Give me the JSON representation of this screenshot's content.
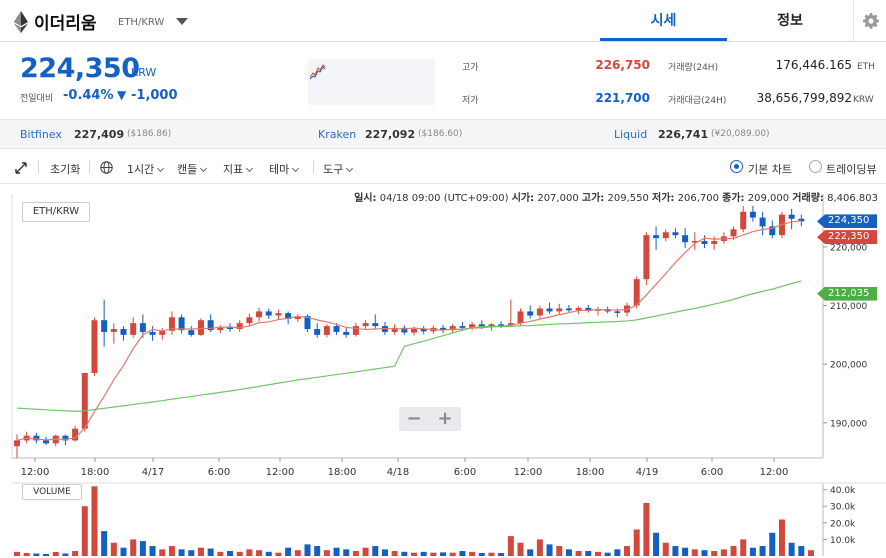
{
  "header": {
    "coin_name": "이더리움",
    "coin_symbol": "ETH/KRW",
    "tabs": [
      "시세",
      "정보"
    ]
  },
  "summary": {
    "price": "224,350",
    "unit": "KRW",
    "change_label": "전일대비",
    "change_rate": "-0.44%",
    "change_arrow": "▼",
    "change_amount": "-1,000",
    "high_label": "고가",
    "high": "226,750",
    "low_label": "저가",
    "low": "221,700",
    "volume_label": "거래량(24H)",
    "volume": "176,446.165",
    "volume_unit": "ETH",
    "amount_label": "거래대금(24H)",
    "amount": "38,656,799,892",
    "amount_unit": "KRW"
  },
  "exchanges": [
    {
      "name": "Bitfinex",
      "price": "227,409",
      "usd": "($186.86)"
    },
    {
      "name": "Kraken",
      "price": "227,092",
      "usd": "($186.60)"
    },
    {
      "name": "Liquid",
      "price": "226,741",
      "usd": "(¥20,089.00)"
    }
  ],
  "toolbar": {
    "reset": "초기화",
    "interval": "1시간",
    "candle": "캔들",
    "indicator": "지표",
    "theme": "테마",
    "tools": "도구",
    "basic_chart": "기본 차트",
    "tradingview": "트레이딩뷰"
  },
  "info": {
    "time_label": "일시:",
    "time": "04/18 09:00 (UTC+09:00)",
    "open_label": "시가:",
    "open": "207,000",
    "high_label": "고가:",
    "high": "209,550",
    "low_label": "저가:",
    "low": "206,700",
    "close_label": "종가:",
    "close": "209,000",
    "volume_label": "거래량:",
    "volume": "8,406.803"
  },
  "pair_label": "ETH/KRW",
  "volume_panel_label": "VOLUME",
  "price_labels": {
    "last": "224,350",
    "ma1": "222,350",
    "ma2": "212,035"
  },
  "colors": {
    "up": "#d2483c",
    "down": "#1460c2",
    "ma_short": "#e07a6a",
    "ma_long": "#72c46a",
    "accent": "#1261c4"
  },
  "chart_data": {
    "type": "candlestick",
    "interval": "1h",
    "y_ticks": [
      190000,
      200000,
      210000,
      220000
    ],
    "y_tick_labels": [
      "190,000",
      "200,000",
      "210,000",
      "220,000"
    ],
    "ylim": [
      184000,
      228000
    ],
    "volume_ticks": [
      "40.0k",
      "30.0k",
      "20.0k",
      "10.0k"
    ],
    "volume_ylim": [
      0,
      44000
    ],
    "x_labels": [
      "12:00",
      "18:00",
      "4/17",
      "6:00",
      "12:00",
      "18:00",
      "4/18",
      "6:00",
      "12:00",
      "18:00",
      "4/19",
      "6:00",
      "12:00"
    ],
    "ohlc": [
      [
        186000,
        188000,
        184000,
        187000
      ],
      [
        187000,
        188500,
        186500,
        187800
      ],
      [
        187800,
        188300,
        186500,
        187000
      ],
      [
        187000,
        187600,
        186200,
        186500
      ],
      [
        186500,
        188000,
        186000,
        187800
      ],
      [
        187800,
        188000,
        186200,
        187000
      ],
      [
        187000,
        189500,
        186800,
        189000
      ],
      [
        189000,
        198500,
        188500,
        198500
      ],
      [
        198500,
        208000,
        198000,
        207500
      ],
      [
        207500,
        211000,
        203000,
        205500
      ],
      [
        205500,
        207000,
        203500,
        206000
      ],
      [
        206000,
        206500,
        204000,
        205000
      ],
      [
        205000,
        208000,
        204500,
        207000
      ],
      [
        207000,
        208500,
        204500,
        205500
      ],
      [
        205500,
        206500,
        204000,
        205000
      ],
      [
        205000,
        206200,
        204200,
        205700
      ],
      [
        205700,
        209000,
        205000,
        208000
      ],
      [
        208000,
        208500,
        205200,
        205800
      ],
      [
        205800,
        206500,
        204700,
        205000
      ],
      [
        205000,
        207800,
        204800,
        207500
      ],
      [
        207500,
        208500,
        205500,
        205800
      ],
      [
        205800,
        206700,
        205300,
        206300
      ],
      [
        206300,
        207000,
        205500,
        206000
      ],
      [
        206000,
        207500,
        205500,
        207000
      ],
      [
        207000,
        208600,
        206500,
        208000
      ],
      [
        208000,
        209600,
        207300,
        209000
      ],
      [
        209000,
        209500,
        207700,
        208300
      ],
      [
        208300,
        209300,
        207700,
        208700
      ],
      [
        208700,
        209000,
        206800,
        207700
      ],
      [
        207700,
        208500,
        207200,
        208200
      ],
      [
        208200,
        208500,
        205500,
        206000
      ],
      [
        206000,
        207000,
        204500,
        205000
      ],
      [
        205000,
        206800,
        204600,
        206500
      ],
      [
        206500,
        207000,
        205000,
        205500
      ],
      [
        205500,
        206200,
        204500,
        205000
      ],
      [
        205000,
        207000,
        204700,
        206500
      ],
      [
        206500,
        207500,
        205800,
        207000
      ],
      [
        207000,
        208500,
        206000,
        206500
      ],
      [
        206500,
        207200,
        205000,
        205500
      ],
      [
        205500,
        206800,
        205000,
        206200
      ],
      [
        206200,
        206600,
        205000,
        205400
      ],
      [
        205400,
        206400,
        204900,
        206000
      ],
      [
        206000,
        206500,
        205100,
        205600
      ],
      [
        205600,
        206600,
        205200,
        206200
      ],
      [
        206200,
        206700,
        205300,
        205800
      ],
      [
        205800,
        206900,
        205300,
        206500
      ],
      [
        206500,
        207200,
        205900,
        206200
      ],
      [
        206200,
        207200,
        205800,
        206800
      ],
      [
        206800,
        207500,
        206000,
        206400
      ],
      [
        206400,
        207000,
        205700,
        206800
      ],
      [
        206800,
        207300,
        206200,
        206700
      ],
      [
        206700,
        211000,
        206300,
        207000
      ],
      [
        207000,
        209500,
        206700,
        209000
      ],
      [
        209000,
        210000,
        207800,
        208300
      ],
      [
        208300,
        210000,
        207800,
        209500
      ],
      [
        209500,
        210500,
        208600,
        209000
      ],
      [
        209000,
        210300,
        208500,
        209500
      ],
      [
        209500,
        210100,
        208900,
        209200
      ],
      [
        209200,
        209900,
        208500,
        209600
      ],
      [
        209600,
        210100,
        208800,
        209100
      ],
      [
        209100,
        209800,
        208300,
        209400
      ],
      [
        209400,
        209800,
        208700,
        209000
      ],
      [
        209000,
        209500,
        208000,
        208800
      ],
      [
        208800,
        210500,
        208200,
        210000
      ],
      [
        210000,
        215000,
        209500,
        214500
      ],
      [
        214500,
        222500,
        213500,
        222000
      ],
      [
        222000,
        223500,
        219500,
        221500
      ],
      [
        221500,
        223000,
        221000,
        222500
      ],
      [
        222500,
        223200,
        221500,
        222000
      ],
      [
        222000,
        223200,
        219800,
        220800
      ],
      [
        220800,
        222500,
        219500,
        221000
      ],
      [
        221000,
        222000,
        219800,
        220500
      ],
      [
        220500,
        221800,
        219500,
        221000
      ],
      [
        221000,
        222500,
        220500,
        221800
      ],
      [
        221800,
        223500,
        221200,
        223000
      ],
      [
        223000,
        227000,
        222500,
        226000
      ],
      [
        226000,
        227000,
        224300,
        225000
      ],
      [
        225000,
        226000,
        222000,
        223500
      ],
      [
        223500,
        224500,
        221500,
        222000
      ],
      [
        222000,
        226000,
        221500,
        225500
      ],
      [
        225500,
        226500,
        223000,
        224800
      ],
      [
        224800,
        225500,
        223500,
        224350
      ]
    ],
    "volume": [
      2500,
      1800,
      1500,
      1200,
      2400,
      1500,
      3000,
      30000,
      42000,
      15000,
      8000,
      5000,
      10000,
      9000,
      6000,
      4000,
      6000,
      4000,
      3500,
      5000,
      4500,
      2500,
      3000,
      2500,
      4000,
      3500,
      2500,
      2000,
      5000,
      3500,
      7000,
      6000,
      3500,
      5000,
      4000,
      3000,
      5000,
      6000,
      4000,
      3000,
      2500,
      2000,
      2500,
      2000,
      2200,
      2000,
      3000,
      2500,
      1800,
      2000,
      1800,
      12000,
      8000,
      4000,
      10000,
      7000,
      6000,
      4000,
      3000,
      3000,
      2500,
      2000,
      4000,
      6000,
      16000,
      32000,
      14000,
      8000,
      6000,
      5000,
      4000,
      3500,
      3000,
      4000,
      6000,
      10000,
      5000,
      6000,
      14000,
      22000,
      8000,
      6000,
      3500
    ]
  }
}
